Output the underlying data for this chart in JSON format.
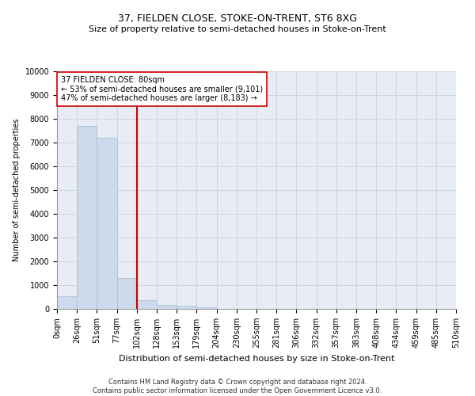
{
  "title": "37, FIELDEN CLOSE, STOKE-ON-TRENT, ST6 8XG",
  "subtitle": "Size of property relative to semi-detached houses in Stoke-on-Trent",
  "xlabel": "Distribution of semi-detached houses by size in Stoke-on-Trent",
  "ylabel": "Number of semi-detached properties",
  "footer_line1": "Contains HM Land Registry data © Crown copyright and database right 2024.",
  "footer_line2": "Contains public sector information licensed under the Open Government Licence v3.0.",
  "bar_values": [
    550,
    7700,
    7200,
    1300,
    380,
    170,
    120,
    70,
    0,
    0,
    0,
    0,
    0,
    0,
    0,
    0,
    0,
    0,
    0,
    0
  ],
  "bar_color": "#cddaeb",
  "bar_edge_color": "#a8bdd4",
  "x_labels": [
    "0sqm",
    "26sqm",
    "51sqm",
    "77sqm",
    "102sqm",
    "128sqm",
    "153sqm",
    "179sqm",
    "204sqm",
    "230sqm",
    "255sqm",
    "281sqm",
    "306sqm",
    "332sqm",
    "357sqm",
    "383sqm",
    "408sqm",
    "434sqm",
    "459sqm",
    "485sqm",
    "510sqm"
  ],
  "ylim": [
    0,
    10000
  ],
  "yticks": [
    0,
    1000,
    2000,
    3000,
    4000,
    5000,
    6000,
    7000,
    8000,
    9000,
    10000
  ],
  "property_line_x": 3.5,
  "property_line_color": "#cc0000",
  "annotation_line1": "37 FIELDEN CLOSE: 80sqm",
  "annotation_line2": "← 53% of semi-detached houses are smaller (9,101)",
  "annotation_line3": "47% of semi-detached houses are larger (8,183) →",
  "annotation_box_color": "#ffffff",
  "annotation_box_edge": "#cc0000",
  "grid_color": "#cdd5e0",
  "background_color": "#e8ecf5",
  "title_fontsize": 9,
  "subtitle_fontsize": 8,
  "xlabel_fontsize": 8,
  "ylabel_fontsize": 7,
  "tick_fontsize": 7,
  "footer_fontsize": 6
}
